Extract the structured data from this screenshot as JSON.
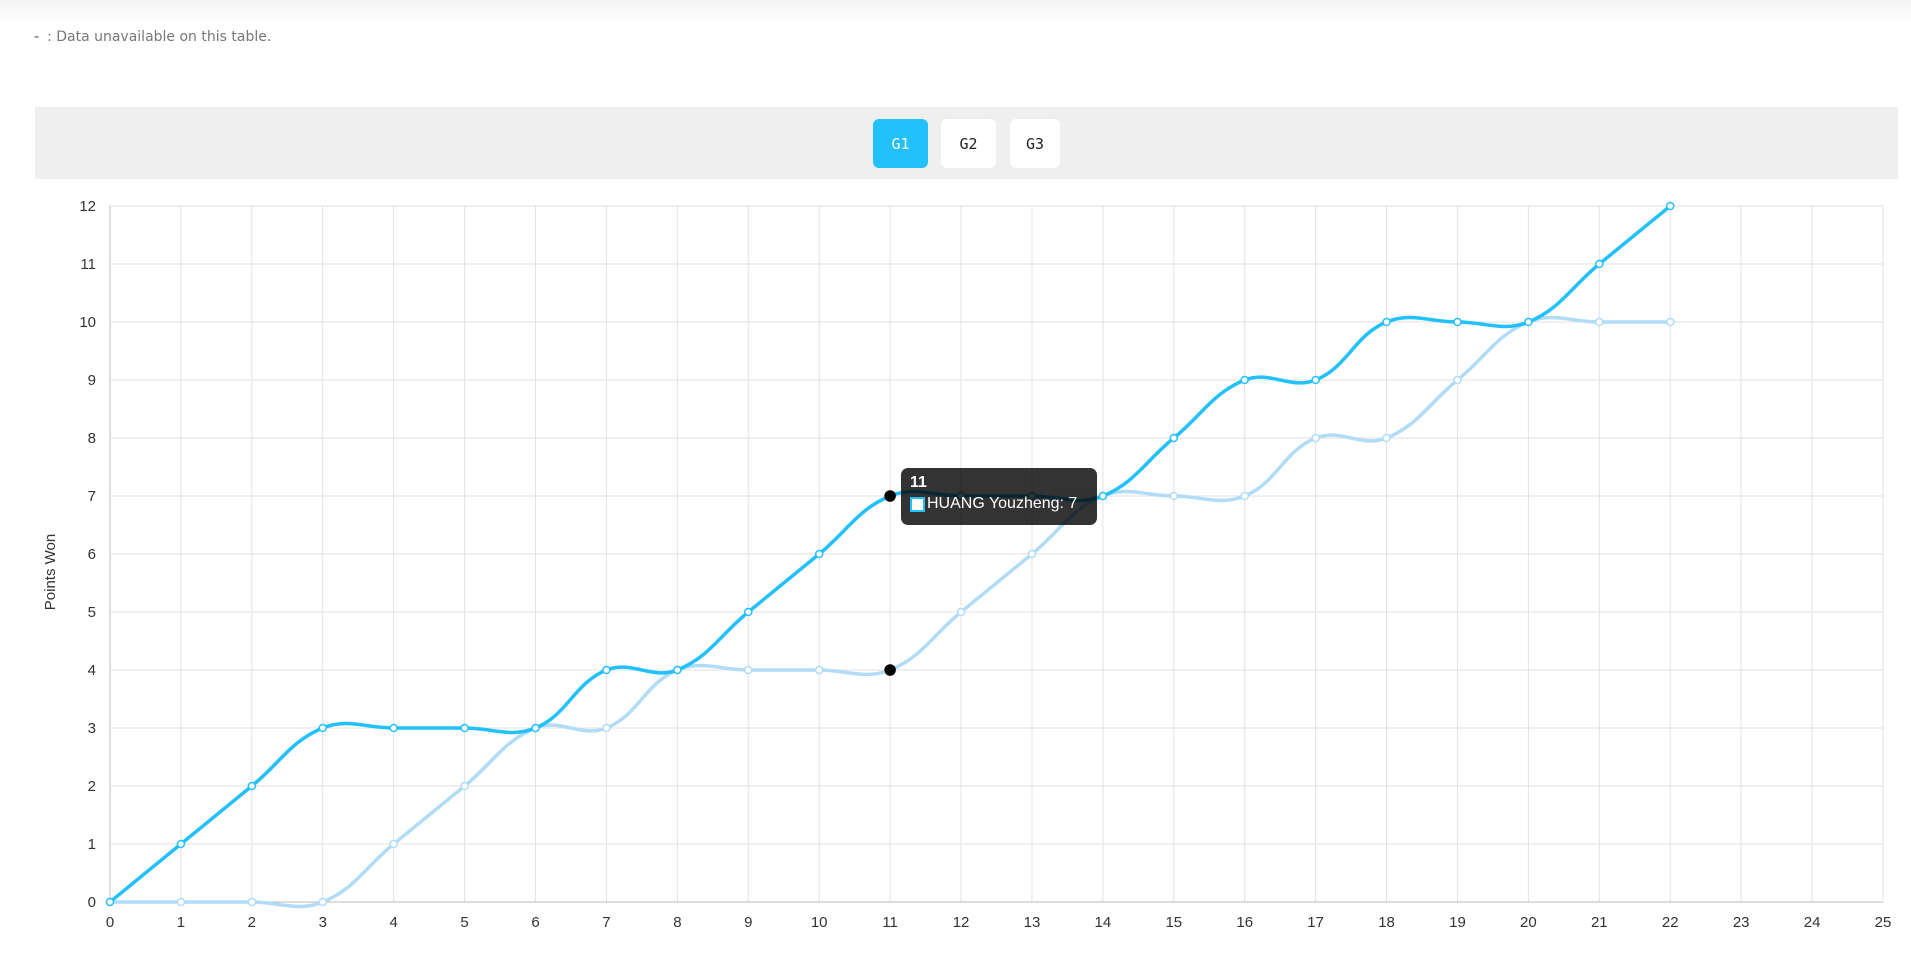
{
  "note": {
    "symbol": "-",
    "text": ": Data unavailable on this table."
  },
  "game_tabs": [
    {
      "label": "G1",
      "active": true
    },
    {
      "label": "G2",
      "active": false
    },
    {
      "label": "G3",
      "active": false
    }
  ],
  "colors": {
    "accent": "#22c1fb",
    "series_dark": "#22c1fb",
    "series_light": "#b0dcf7"
  },
  "chart_data": {
    "type": "line",
    "title": "",
    "xlabel": "",
    "ylabel": "Points Won",
    "xlim": [
      0,
      25
    ],
    "ylim": [
      0,
      12
    ],
    "grid": true,
    "x_ticks": [
      0,
      1,
      2,
      3,
      4,
      5,
      6,
      7,
      8,
      9,
      10,
      11,
      12,
      13,
      14,
      15,
      16,
      17,
      18,
      19,
      20,
      21,
      22,
      23,
      24,
      25
    ],
    "y_ticks": [
      0,
      1,
      2,
      3,
      4,
      5,
      6,
      7,
      8,
      9,
      10,
      11,
      12
    ],
    "x": [
      0,
      1,
      2,
      3,
      4,
      5,
      6,
      7,
      8,
      9,
      10,
      11,
      12,
      13,
      14,
      15,
      16,
      17,
      18,
      19,
      20,
      21,
      22
    ],
    "series": [
      {
        "name": "HUANG Youzheng",
        "color": "#22c1fb",
        "values": [
          0,
          1,
          2,
          3,
          3,
          3,
          3,
          4,
          4,
          5,
          6,
          7,
          7,
          7,
          7,
          8,
          9,
          9,
          10,
          10,
          10,
          11,
          12
        ]
      },
      {
        "color": "#b0dcf7",
        "values": [
          0,
          0,
          0,
          0,
          1,
          2,
          3,
          3,
          4,
          4,
          4,
          4,
          5,
          6,
          7,
          7,
          7,
          8,
          8,
          9,
          10,
          10,
          10
        ]
      }
    ],
    "tooltip": {
      "title": "11",
      "label": "HUANG Youzheng: 7",
      "x": 11
    }
  }
}
